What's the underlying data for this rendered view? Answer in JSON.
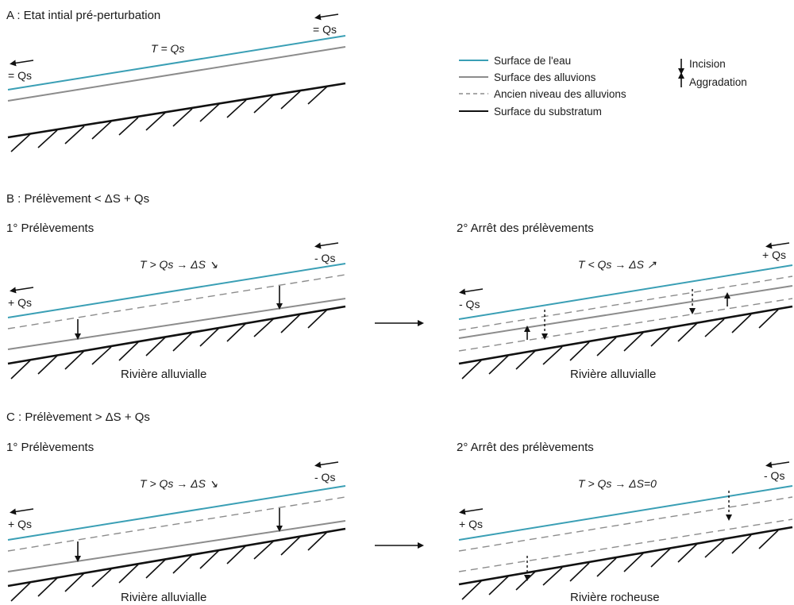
{
  "panelA": {
    "title": "A : Etat intial pré-perturbation",
    "equation": "T = Qs",
    "qs_right": "= Qs",
    "qs_left": "= Qs"
  },
  "legend": {
    "water": "Surface de l'eau",
    "alluvium": "Surface des alluvions",
    "old_alluvium": "Ancien niveau des alluvions",
    "bedrock": "Surface du substratum",
    "incision": "Incision",
    "aggradation": "Aggradation",
    "colors": {
      "water": "#3a9fb5",
      "alluvium": "#8c8c8c",
      "bedrock": "#111111"
    }
  },
  "panelB": {
    "title": "B : Prélèvement < ΔS + Qs",
    "step1": {
      "title": "1° Prélèvements",
      "equation": "T > Qs → ΔS ↘",
      "qs_right": "- Qs",
      "qs_left": "+ Qs",
      "caption": "Rivière alluvialle"
    },
    "step2": {
      "title": "2° Arrêt des prélèvements",
      "equation": "T < Qs → ΔS ↗",
      "qs_right": "+ Qs",
      "qs_left": "- Qs",
      "caption": "Rivière alluvialle"
    }
  },
  "panelC": {
    "title": "C : Prélèvement > ΔS + Qs",
    "step1": {
      "title": "1° Prélèvements",
      "equation": "T > Qs → ΔS ↘",
      "qs_right": "- Qs",
      "qs_left": "+ Qs",
      "caption": "Rivière alluvialle"
    },
    "step2": {
      "title": "2° Arrêt des prélèvements",
      "equation": "T > Qs → ΔS=0",
      "qs_right": "- Qs",
      "qs_left": "+ Qs",
      "caption": "Rivière rocheuse"
    }
  }
}
